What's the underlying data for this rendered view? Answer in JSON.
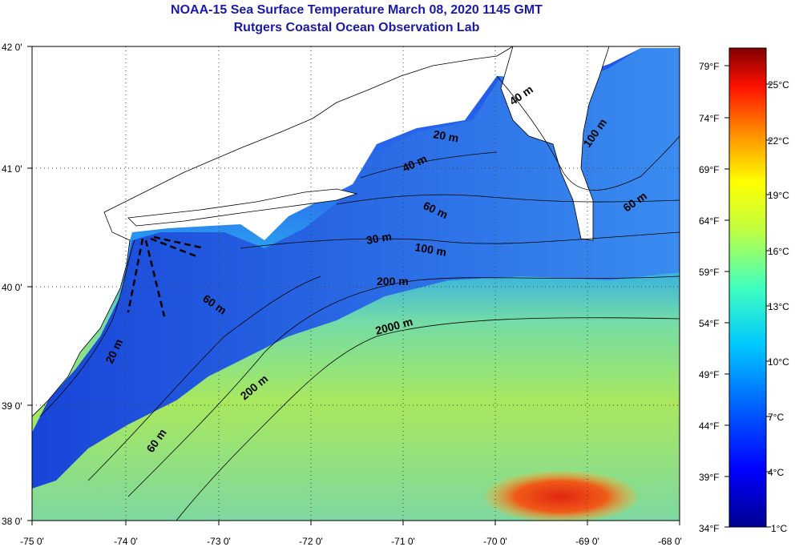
{
  "header": {
    "title_line1": "NOAA-15 Sea Surface Temperature March 08, 2020 1145 GMT",
    "title_line2": "Rutgers Coastal Ocean Observation Lab"
  },
  "map": {
    "lon_ticks": [
      "-75 0'",
      "-74 0'",
      "-73 0'",
      "-72 0'",
      "-71 0'",
      "-70 0'",
      "-69 0'",
      "-68 0'"
    ],
    "lat_ticks": [
      "42 0'",
      "41 0'",
      "40 0'",
      "39 0'",
      "38 0'"
    ],
    "lon_range": [
      -75,
      -68
    ],
    "lat_range": [
      38,
      42
    ],
    "grid": "dotted",
    "contour_labels": [
      "40 m",
      "20 m",
      "100 m",
      "40 m",
      "60 m",
      "60 m",
      "30 m",
      "100 m",
      "200 m",
      "60 m",
      "2000 m",
      "20 m",
      "200 m",
      "60 m"
    ],
    "warm_core_color": "#e8381a"
  },
  "colorbar": {
    "fahrenheit_labels": [
      "79°F",
      "74°F",
      "69°F",
      "64°F",
      "59°F",
      "54°F",
      "49°F",
      "44°F",
      "39°F",
      "34°F"
    ],
    "celsius_labels": [
      "25°C",
      "22°C",
      "19°C",
      "16°C",
      "13°C",
      "10°C",
      "7°C",
      "4°C",
      "1°C"
    ],
    "colors": [
      "#00008f",
      "#0000ff",
      "#0080ff",
      "#00ffff",
      "#80ff80",
      "#ffff00",
      "#ff8000",
      "#ff0000",
      "#800000"
    ]
  }
}
